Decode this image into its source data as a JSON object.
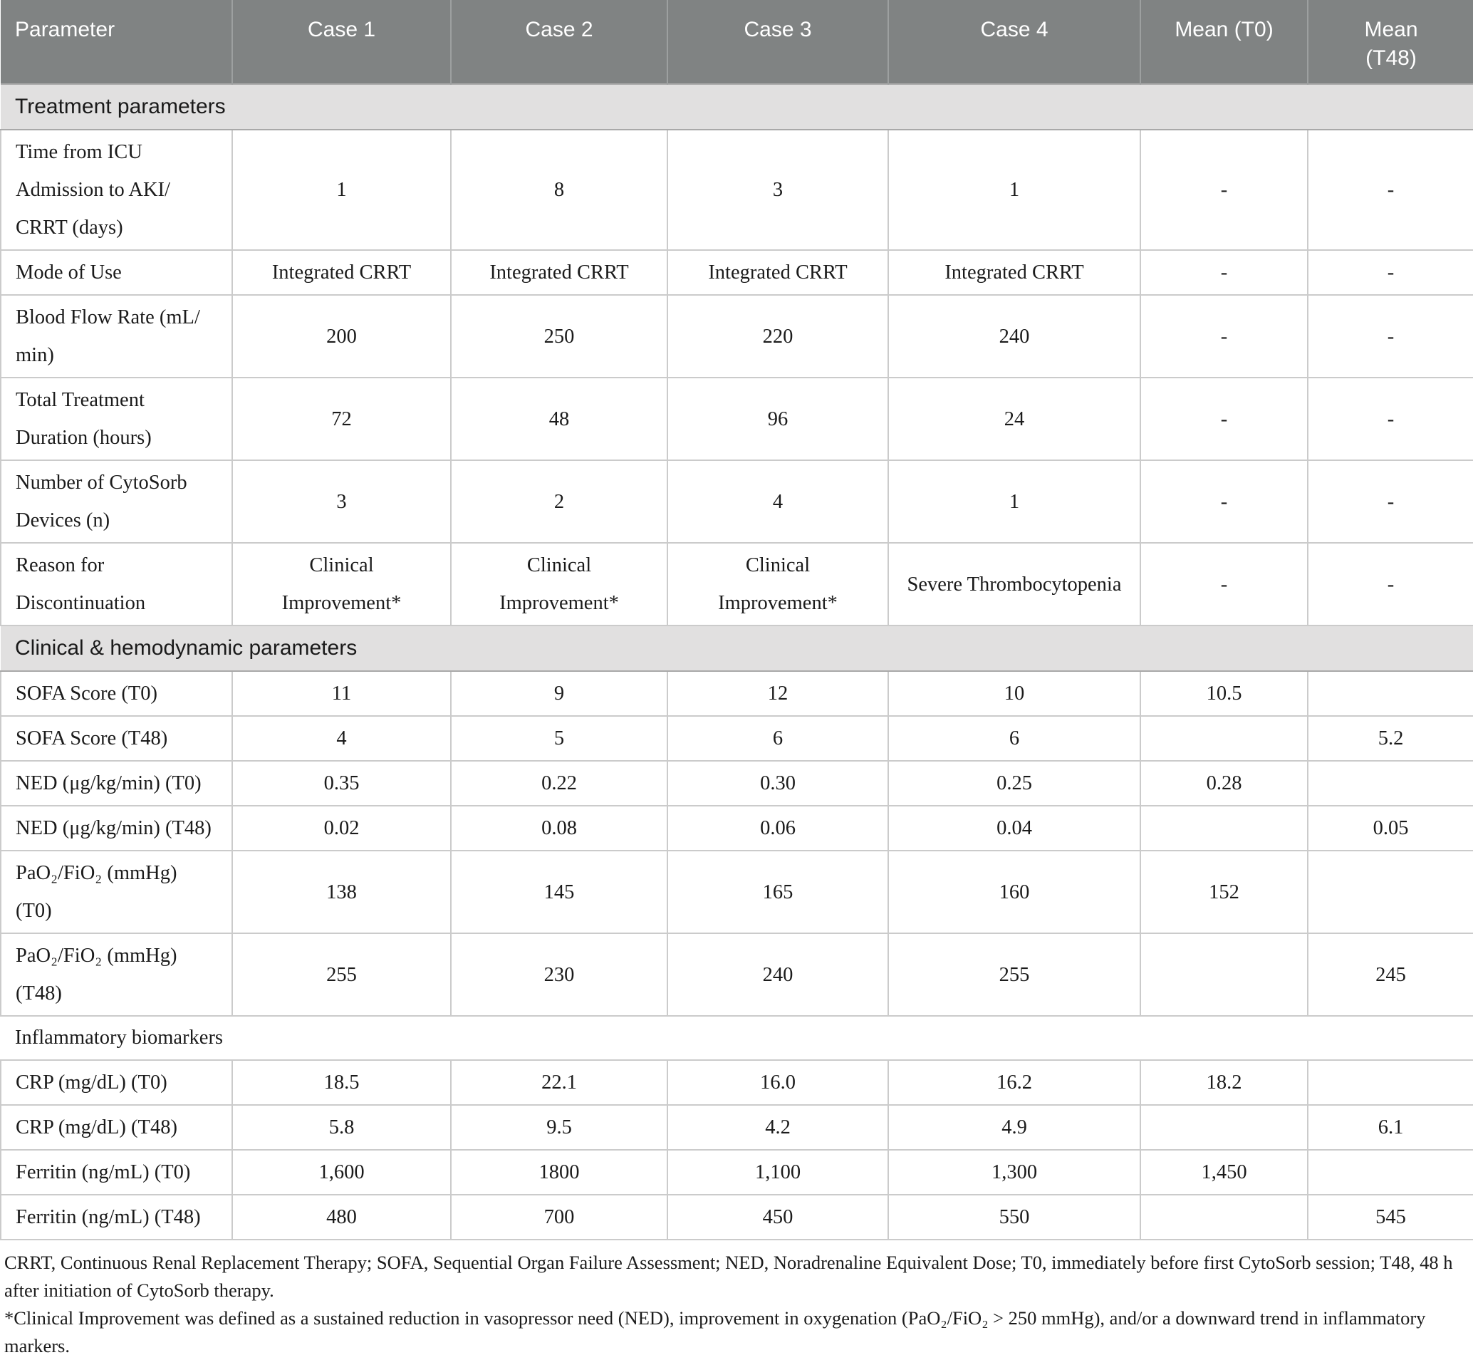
{
  "table": {
    "columns": [
      "Parameter",
      "Case 1",
      "Case 2",
      "Case 3",
      "Case 4",
      "Mean (T0)",
      "Mean\n(T48)"
    ],
    "rows": [
      {
        "section": "Treatment parameters"
      },
      {
        "label": "Time from ICU\nAdmission to AKI/\nCRRT (days)",
        "values": [
          "1",
          "8",
          "3",
          "1",
          "-",
          "-"
        ]
      },
      {
        "label": "Mode of Use",
        "values": [
          "Integrated CRRT",
          "Integrated CRRT",
          "Integrated CRRT",
          "Integrated CRRT",
          "-",
          "-"
        ]
      },
      {
        "label": "Blood Flow Rate (mL/\nmin)",
        "values": [
          "200",
          "250",
          "220",
          "240",
          "-",
          "-"
        ]
      },
      {
        "label": "Total Treatment\nDuration (hours)",
        "values": [
          "72",
          "48",
          "96",
          "24",
          "-",
          "-"
        ]
      },
      {
        "label": "Number of CytoSorb\nDevices (n)",
        "values": [
          "3",
          "2",
          "4",
          "1",
          "-",
          "-"
        ]
      },
      {
        "label": "Reason for\nDiscontinuation",
        "values": [
          "Clinical\nImprovement*",
          "Clinical\nImprovement*",
          "Clinical\nImprovement*",
          "Severe Thrombocytopenia",
          "-",
          "-"
        ]
      },
      {
        "section": "Clinical & hemodynamic parameters"
      },
      {
        "label": "SOFA Score (T0)",
        "values": [
          "11",
          "9",
          "12",
          "10",
          "10.5",
          ""
        ]
      },
      {
        "label": "SOFA Score (T48)",
        "values": [
          "4",
          "5",
          "6",
          "6",
          "",
          "5.2"
        ]
      },
      {
        "label": "NED (μg/kg/min) (T0)",
        "values": [
          "0.35",
          "0.22",
          "0.30",
          "0.25",
          "0.28",
          ""
        ]
      },
      {
        "label": "NED (μg/kg/min) (T48)",
        "values": [
          "0.02",
          "0.08",
          "0.06",
          "0.04",
          "",
          "0.05"
        ]
      },
      {
        "label": "PaO₂/FiO₂ (mmHg)\n(T0)",
        "values": [
          "138",
          "145",
          "165",
          "160",
          "152",
          ""
        ]
      },
      {
        "label": "PaO₂/FiO₂ (mmHg)\n(T48)",
        "values": [
          "255",
          "230",
          "240",
          "255",
          "",
          "245"
        ]
      },
      {
        "subsection": "Inflammatory biomarkers"
      },
      {
        "label": "CRP (mg/dL) (T0)",
        "values": [
          "18.5",
          "22.1",
          "16.0",
          "16.2",
          "18.2",
          ""
        ]
      },
      {
        "label": "CRP (mg/dL) (T48)",
        "values": [
          "5.8",
          "9.5",
          "4.2",
          "4.9",
          "",
          "6.1"
        ]
      },
      {
        "label": "Ferritin (ng/mL) (T0)",
        "values": [
          "1,600",
          "1800",
          "1,100",
          "1,300",
          "1,450",
          ""
        ]
      },
      {
        "label": "Ferritin (ng/mL) (T48)",
        "values": [
          "480",
          "700",
          "450",
          "550",
          "",
          "545"
        ]
      }
    ]
  },
  "footnotes": {
    "abbreviations": "CRRT, Continuous Renal Replacement Therapy; SOFA, Sequential Organ Failure Assessment; NED, Noradrenaline Equivalent Dose; T0, immediately before first CytoSorb session; T48, 48 h after initiation of CytoSorb therapy.",
    "clinical_improvement": "*Clinical Improvement was defined as a sustained reduction in vasopressor need (NED), improvement in oxygenation (PaO₂/FiO₂ > 250 mmHg), and/or a downward trend in inflammatory markers."
  }
}
